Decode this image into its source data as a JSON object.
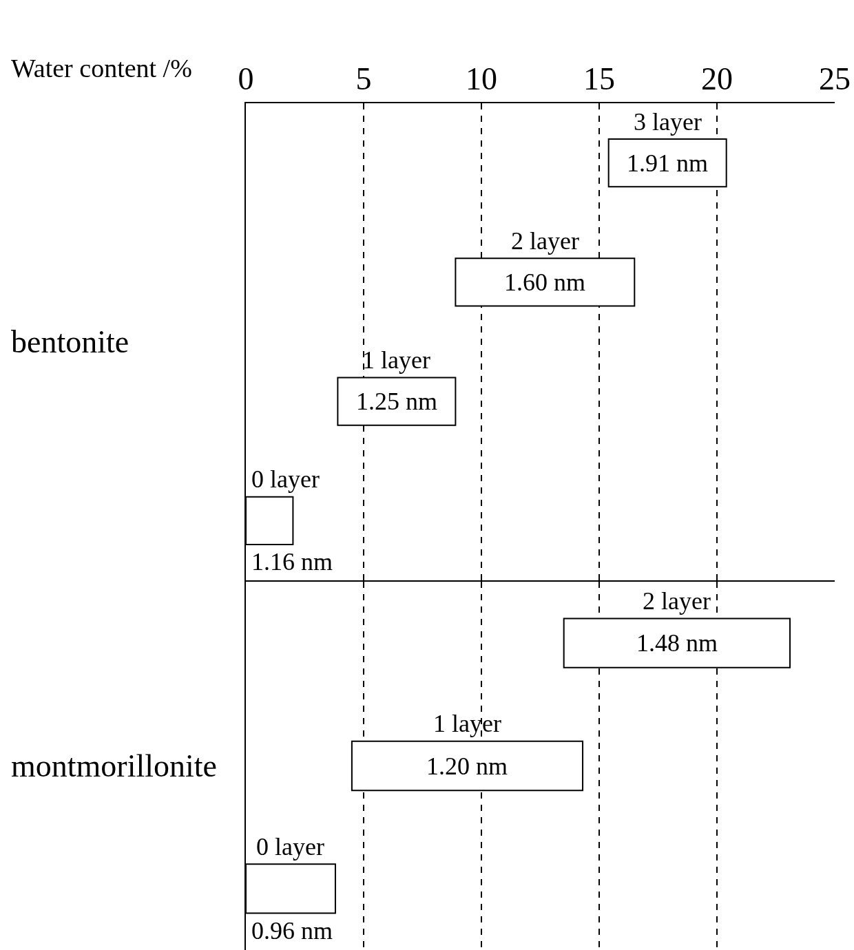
{
  "chart_data": [
    {
      "type": "bar",
      "orientation": "horizontal",
      "xlabel": "Water content /%",
      "ylabel": "bentonite",
      "categories": [
        "3 layer",
        "2 layer",
        "1 layer",
        "0 layer"
      ],
      "base": [
        15.4,
        8.9,
        3.9,
        0
      ],
      "values": [
        5.0,
        7.6,
        5.0,
        2.0
      ],
      "annotations": [
        "1.91 nm",
        "1.60 nm",
        "1.25 nm",
        "1.16 nm"
      ],
      "color": "#ffffff",
      "xlim": [
        0,
        25
      ],
      "xticks": [
        0,
        5,
        10,
        15,
        20,
        25
      ],
      "grid": "x",
      "line_style": "dashed",
      "tick_labels": "x"
    },
    {
      "type": "bar",
      "orientation": "horizontal",
      "ylabel": "montmorillonite",
      "categories": [
        "2 layer",
        "1 layer",
        "0 layer"
      ],
      "base": [
        13.5,
        4.5,
        0
      ],
      "values": [
        9.6,
        9.8,
        3.8
      ],
      "annotations": [
        "1.48 nm",
        "1.20 nm",
        "0.96 nm"
      ],
      "color": "#ffffff",
      "xlim": [
        0,
        25
      ],
      "xticks": [
        0,
        5,
        10,
        15,
        20,
        25
      ],
      "grid": "x",
      "line_style": "dashed",
      "tick_labels": false
    }
  ]
}
